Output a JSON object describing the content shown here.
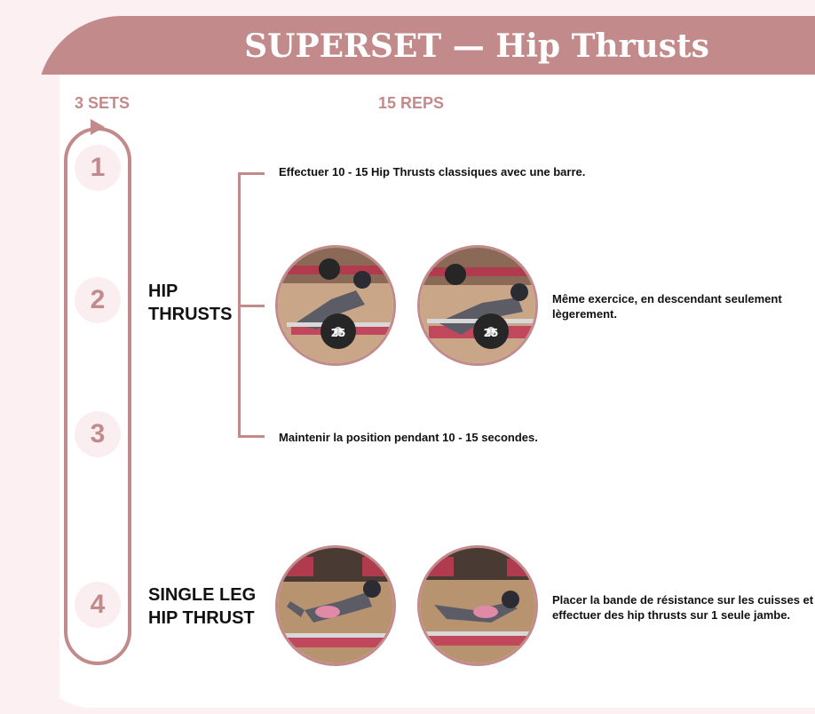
{
  "header": {
    "title": "SUPERSET — Hip Thrusts"
  },
  "sets_label": "3 SETS",
  "reps_label": "15 REPS",
  "steps": [
    "1",
    "2",
    "3",
    "4"
  ],
  "exercises": {
    "hip_thrusts": {
      "name_line1": "HIP",
      "name_line2": "THRUSTS",
      "instruction_top": "Effectuer 10 - 15 Hip Thrusts classiques avec une barre.",
      "instruction_middle": "Même exercice, en descendant seulement lègerement.",
      "instruction_bottom": "Maintenir la position pendant 10 - 15 secondes.",
      "plate_label": "25"
    },
    "single_leg": {
      "name_line1": "SINGLE LEG",
      "name_line2": "HIP THRUST",
      "instruction_line1": "Placer la bande de résistance sur les cuisses et",
      "instruction_line2": "effectuer des hip thrusts sur 1 seule jambe."
    }
  },
  "colors": {
    "accent": "#c28a8b",
    "background": "#fcf0f3",
    "number_circle": "#fbeef1",
    "text": "#111111"
  }
}
